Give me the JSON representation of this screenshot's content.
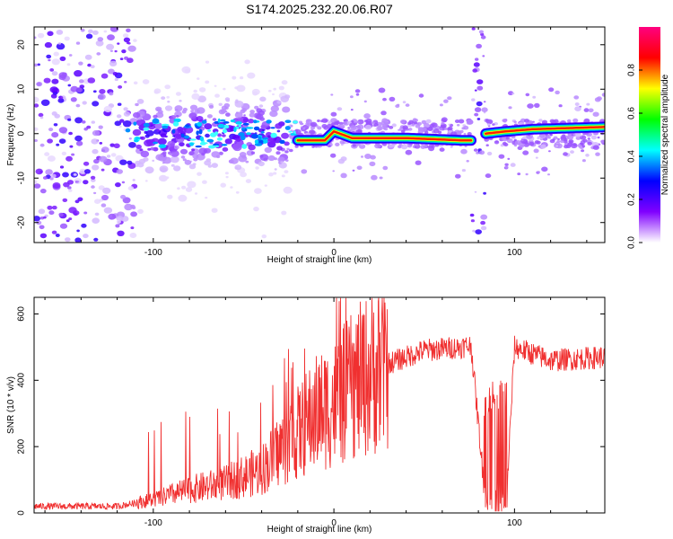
{
  "chart_data": [
    {
      "type": "heatmap",
      "title": "S174.2025.232.20.06.R07",
      "xlabel": "Height of straight line (km)",
      "ylabel": "Frequency (Hz)",
      "xlim": [
        -166,
        150
      ],
      "ylim": [
        -24.5,
        24
      ],
      "xticks": [
        -100,
        0,
        100
      ],
      "xtick_labels": [
        "-100",
        "0",
        "100"
      ],
      "yticks": [
        -20,
        -10,
        0,
        10,
        20
      ],
      "ytick_labels": [
        "-20",
        "-10",
        "0",
        "10",
        "20"
      ],
      "colorbar": {
        "label": "Normalized spectral amplitude",
        "range": [
          0,
          1
        ],
        "ticks": [
          0.0,
          0.2,
          0.4,
          0.6,
          0.8
        ],
        "tick_labels": [
          "0.0",
          "0.2",
          "0.4",
          "0.6",
          "0.8"
        ],
        "colors": [
          "#ffffff",
          "#8000ff",
          "#0000ff",
          "#00ffff",
          "#00ff00",
          "#ffff00",
          "#ff0000",
          "#ff0080"
        ]
      },
      "ridge": [
        {
          "x": -20,
          "freq": -1.5
        },
        {
          "x": -5,
          "freq": -1.5
        },
        {
          "x": 0,
          "freq": 0.5
        },
        {
          "x": 10,
          "freq": -1.0
        },
        {
          "x": 40,
          "freq": -1.0
        },
        {
          "x": 70,
          "freq": -1.5
        },
        {
          "x": 76,
          "freq": -1.5
        },
        {
          "x": 84,
          "freq": 0.0
        },
        {
          "x": 95,
          "freq": 0.5
        },
        {
          "x": 110,
          "freq": 1.0
        },
        {
          "x": 150,
          "freq": 1.5
        }
      ]
    },
    {
      "type": "line",
      "xlabel": "Height of straight line (km)",
      "ylabel": "SNR (10 * v/v)",
      "xlim": [
        -166,
        150
      ],
      "ylim": [
        0,
        650
      ],
      "xticks": [
        -100,
        0,
        100
      ],
      "xtick_labels": [
        "-100",
        "0",
        "100"
      ],
      "yticks": [
        0,
        200,
        400,
        600
      ],
      "ytick_labels": [
        "0",
        "200",
        "400",
        "600"
      ],
      "color": "#f03030",
      "envelope": {
        "x": [
          -166,
          -120,
          -100,
          -80,
          -60,
          -40,
          -30,
          -20,
          -10,
          0,
          10,
          20,
          30,
          40,
          50,
          60,
          70,
          76,
          83,
          96,
          100,
          110,
          120,
          150
        ],
        "y": [
          20,
          20,
          40,
          70,
          90,
          130,
          190,
          240,
          300,
          330,
          380,
          420,
          450,
          470,
          490,
          495,
          500,
          505,
          90,
          90,
          500,
          480,
          460,
          470
        ]
      }
    }
  ]
}
